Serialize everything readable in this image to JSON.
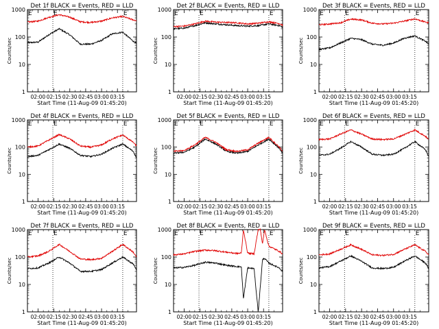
{
  "chart_data": [
    {
      "type": "line",
      "title": "Det 1f BLACK = Events, RED = LLD",
      "xlabel": "Start Time (11-Aug-09 01:45:20)",
      "ylabel": "Counts/sec",
      "yscale": "log",
      "ylim": [
        1,
        1000
      ],
      "xlim_minutes": [
        -10,
        93
      ],
      "xtick_labels": [
        "02:00",
        "02:15",
        "02:30",
        "02:45",
        "03:00",
        "03:15"
      ],
      "ytick_labels": [
        "1",
        "10",
        "100",
        "1000"
      ],
      "markers": [
        "E",
        "E"
      ],
      "marker_lines": [
        14,
        80
      ],
      "series": [
        {
          "color": "#000000",
          "x": [
            -10,
            0,
            10,
            20,
            30,
            40,
            50,
            60,
            70,
            80,
            90,
            93
          ],
          "values": [
            62,
            65,
            120,
            200,
            120,
            55,
            55,
            75,
            130,
            150,
            70,
            58
          ]
        },
        {
          "color": "#e00000",
          "x": [
            -10,
            0,
            10,
            20,
            30,
            40,
            50,
            60,
            70,
            80,
            90,
            93
          ],
          "values": [
            350,
            380,
            520,
            650,
            530,
            360,
            340,
            380,
            500,
            560,
            420,
            400
          ]
        }
      ]
    },
    {
      "type": "line",
      "title": "Det 2f BLACK = Events, RED = LLD",
      "xlabel": "Start Time (11-Aug-09 01:45:20)",
      "ylabel": "Counts/sec",
      "yscale": "log",
      "ylim": [
        1,
        1000
      ],
      "xlim_minutes": [
        -10,
        93
      ],
      "xtick_labels": [
        "02:00",
        "02:15",
        "02:30",
        "02:45",
        "03:00",
        "03:15"
      ],
      "ytick_labels": [
        "1",
        "10",
        "100",
        "1000"
      ],
      "markers": [
        "E",
        "E"
      ],
      "marker_lines": [
        14,
        80
      ],
      "series": [
        {
          "color": "#000000",
          "x": [
            -10,
            0,
            10,
            20,
            30,
            40,
            50,
            60,
            70,
            80,
            90,
            93
          ],
          "values": [
            200,
            210,
            260,
            330,
            300,
            280,
            260,
            250,
            260,
            300,
            260,
            230
          ]
        },
        {
          "color": "#e00000",
          "x": [
            -10,
            0,
            10,
            20,
            30,
            40,
            50,
            60,
            70,
            80,
            90,
            93
          ],
          "values": [
            240,
            250,
            300,
            380,
            350,
            340,
            330,
            300,
            320,
            360,
            310,
            270
          ]
        }
      ]
    },
    {
      "type": "line",
      "title": "Det 3f BLACK = Events, RED = LLD",
      "xlabel": "Start Time (11-Aug-09 01:45:20)",
      "ylabel": "Counts/sec",
      "yscale": "log",
      "ylim": [
        1,
        1000
      ],
      "xlim_minutes": [
        -10,
        93
      ],
      "xtick_labels": [
        "02:00",
        "02:15",
        "02:30",
        "02:45",
        "03:00",
        "03:15"
      ],
      "ytick_labels": [
        "1",
        "10",
        "100",
        "1000"
      ],
      "markers": [
        "E",
        "E"
      ],
      "marker_lines": [
        14,
        80
      ],
      "series": [
        {
          "color": "#000000",
          "x": [
            -10,
            0,
            10,
            20,
            30,
            40,
            50,
            60,
            70,
            80,
            90,
            93
          ],
          "values": [
            35,
            40,
            60,
            90,
            80,
            55,
            50,
            60,
            90,
            110,
            70,
            55
          ]
        },
        {
          "color": "#e00000",
          "x": [
            -10,
            0,
            10,
            20,
            30,
            40,
            50,
            60,
            70,
            80,
            90,
            93
          ],
          "values": [
            280,
            300,
            330,
            450,
            420,
            320,
            300,
            320,
            380,
            460,
            350,
            330
          ]
        }
      ]
    },
    {
      "type": "line",
      "title": "Det 4f BLACK = Events, RED = LLD",
      "xlabel": "Start Time (11-Aug-09 01:45:20)",
      "ylabel": "Counts/sec",
      "yscale": "log",
      "ylim": [
        1,
        1000
      ],
      "xlim_minutes": [
        -10,
        93
      ],
      "xtick_labels": [
        "02:00",
        "02:15",
        "02:30",
        "02:45",
        "03:00",
        "03:15"
      ],
      "ytick_labels": [
        "1",
        "10",
        "100",
        "1000"
      ],
      "markers": [
        "E",
        "E"
      ],
      "marker_lines": [
        14,
        80
      ],
      "series": [
        {
          "color": "#000000",
          "x": [
            -10,
            0,
            10,
            20,
            30,
            40,
            50,
            60,
            70,
            80,
            90,
            93
          ],
          "values": [
            45,
            50,
            80,
            130,
            90,
            50,
            45,
            55,
            90,
            130,
            70,
            40
          ]
        },
        {
          "color": "#e00000",
          "x": [
            -10,
            0,
            10,
            20,
            30,
            40,
            50,
            60,
            70,
            80,
            90,
            93
          ],
          "values": [
            100,
            110,
            180,
            290,
            200,
            110,
            100,
            120,
            200,
            280,
            150,
            110
          ]
        }
      ]
    },
    {
      "type": "line",
      "title": "Det 5f BLACK = Events, RED = LLD",
      "xlabel": "Start Time (11-Aug-09 01:45:20)",
      "ylabel": "Counts/sec",
      "yscale": "log",
      "ylim": [
        1,
        1000
      ],
      "xlim_minutes": [
        -10,
        93
      ],
      "xtick_labels": [
        "02:00",
        "02:15",
        "02:30",
        "02:45",
        "03:00",
        "03:15"
      ],
      "ytick_labels": [
        "1",
        "10",
        "100",
        "1000"
      ],
      "markers": [
        "E",
        "E"
      ],
      "marker_lines": [
        14,
        80
      ],
      "series": [
        {
          "color": "#000000",
          "x": [
            -10,
            0,
            10,
            20,
            30,
            40,
            50,
            60,
            70,
            80,
            90,
            93
          ],
          "values": [
            60,
            65,
            100,
            200,
            130,
            70,
            60,
            70,
            120,
            200,
            90,
            60
          ]
        },
        {
          "color": "#e00000",
          "x": [
            -10,
            0,
            10,
            20,
            30,
            40,
            50,
            60,
            70,
            80,
            90,
            93
          ],
          "values": [
            70,
            75,
            120,
            230,
            150,
            80,
            70,
            80,
            140,
            230,
            100,
            70
          ]
        }
      ]
    },
    {
      "type": "line",
      "title": "Det 6f BLACK = Events, RED = LLD",
      "xlabel": "Start Time (11-Aug-09 01:45:20)",
      "ylabel": "Counts/sec",
      "yscale": "log",
      "ylim": [
        1,
        1000
      ],
      "xlim_minutes": [
        -10,
        93
      ],
      "xtick_labels": [
        "02:00",
        "02:15",
        "02:30",
        "02:45",
        "03:00",
        "03:15"
      ],
      "ytick_labels": [
        "1",
        "10",
        "100",
        "1000"
      ],
      "markers": [
        "E",
        "E"
      ],
      "marker_lines": [
        14,
        80
      ],
      "series": [
        {
          "color": "#000000",
          "x": [
            -10,
            0,
            10,
            20,
            30,
            40,
            50,
            60,
            70,
            80,
            90,
            93
          ],
          "values": [
            50,
            55,
            90,
            160,
            100,
            55,
            50,
            55,
            90,
            160,
            80,
            45
          ]
        },
        {
          "color": "#e00000",
          "x": [
            -10,
            0,
            10,
            20,
            30,
            40,
            50,
            60,
            70,
            80,
            90,
            93
          ],
          "values": [
            190,
            200,
            300,
            430,
            300,
            200,
            190,
            200,
            290,
            430,
            250,
            190
          ]
        }
      ]
    },
    {
      "type": "line",
      "title": "Det 7f BLACK = Events, RED = LLD",
      "xlabel": "Start Time (11-Aug-09 01:45:20)",
      "ylabel": "Counts/sec",
      "yscale": "log",
      "ylim": [
        1,
        1000
      ],
      "xlim_minutes": [
        -10,
        93
      ],
      "xtick_labels": [
        "02:00",
        "02:15",
        "02:30",
        "02:45",
        "03:00",
        "03:15"
      ],
      "ytick_labels": [
        "1",
        "10",
        "100",
        "1000"
      ],
      "markers": [
        "E",
        "E"
      ],
      "marker_lines": [
        14,
        80
      ],
      "series": [
        {
          "color": "#000000",
          "x": [
            -10,
            0,
            10,
            20,
            30,
            40,
            50,
            60,
            70,
            80,
            90,
            93
          ],
          "values": [
            38,
            40,
            60,
            100,
            60,
            30,
            30,
            35,
            60,
            100,
            55,
            35
          ]
        },
        {
          "color": "#e00000",
          "x": [
            -10,
            0,
            10,
            20,
            30,
            40,
            50,
            60,
            70,
            80,
            90,
            93
          ],
          "values": [
            100,
            110,
            160,
            290,
            160,
            85,
            80,
            90,
            160,
            290,
            150,
            100
          ]
        }
      ]
    },
    {
      "type": "line",
      "title": "Det 8f BLACK = Events, RED = LLD",
      "xlabel": "Start Time (11-Aug-09 01:45:20)",
      "ylabel": "Counts/sec",
      "yscale": "log",
      "ylim": [
        1,
        1000
      ],
      "xlim_minutes": [
        -10,
        93
      ],
      "xtick_labels": [
        "02:00",
        "02:15",
        "02:30",
        "02:45",
        "03:00",
        "03:15"
      ],
      "ytick_labels": [
        "1",
        "10",
        "100",
        "1000"
      ],
      "markers": [
        "E",
        "E"
      ],
      "marker_lines": [
        14,
        80
      ],
      "series": [
        {
          "color": "#000000",
          "x": [
            -10,
            0,
            10,
            20,
            30,
            40,
            50,
            54,
            56,
            60,
            66,
            70,
            74,
            76,
            80,
            90,
            93
          ],
          "values": [
            40,
            42,
            50,
            65,
            60,
            50,
            45,
            44,
            3,
            40,
            38,
            1,
            80,
            90,
            60,
            40,
            30
          ]
        },
        {
          "color": "#e00000",
          "x": [
            -10,
            0,
            10,
            20,
            30,
            40,
            50,
            54,
            56,
            60,
            66,
            70,
            72,
            74,
            76,
            80,
            90,
            93
          ],
          "values": [
            120,
            130,
            160,
            180,
            170,
            150,
            135,
            140,
            1000,
            140,
            130,
            1000,
            1000,
            300,
            1000,
            250,
            160,
            130
          ]
        }
      ]
    },
    {
      "type": "line",
      "title": "Det 9f BLACK = Events, RED = LLD",
      "xlabel": "Start Time (11-Aug-09 01:45:20)",
      "ylabel": "Counts/sec",
      "yscale": "log",
      "ylim": [
        1,
        1000
      ],
      "xlim_minutes": [
        -10,
        93
      ],
      "xtick_labels": [
        "02:00",
        "02:15",
        "02:30",
        "02:45",
        "03:00",
        "03:15"
      ],
      "ytick_labels": [
        "1",
        "10",
        "100",
        "1000"
      ],
      "markers": [
        "E",
        "E"
      ],
      "marker_lines": [
        14,
        80
      ],
      "series": [
        {
          "color": "#000000",
          "x": [
            -10,
            0,
            10,
            20,
            30,
            40,
            50,
            60,
            70,
            80,
            90,
            93
          ],
          "values": [
            40,
            45,
            70,
            110,
            70,
            40,
            38,
            42,
            70,
            110,
            60,
            38
          ]
        },
        {
          "color": "#e00000",
          "x": [
            -10,
            0,
            10,
            20,
            30,
            40,
            50,
            60,
            70,
            80,
            90,
            93
          ],
          "values": [
            120,
            130,
            190,
            280,
            190,
            120,
            115,
            125,
            190,
            280,
            160,
            120
          ]
        }
      ]
    }
  ]
}
